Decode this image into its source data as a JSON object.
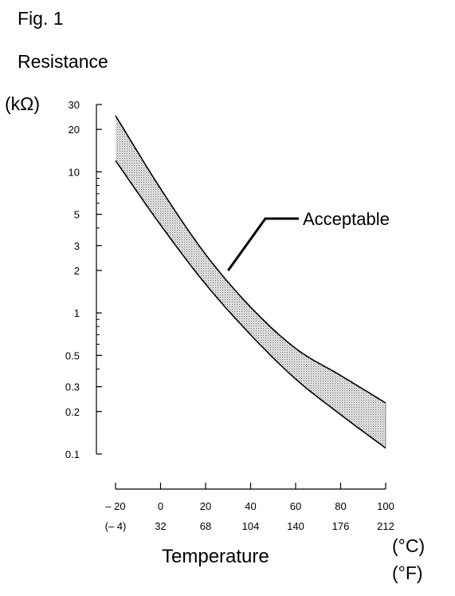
{
  "figure_label": "Fig. 1",
  "chart_data": {
    "type": "area",
    "title": "",
    "ylabel": "Resistance",
    "ylabel_unit": "(kΩ)",
    "xlabel": "Temperature",
    "x_unit_primary": "(°C)",
    "x_unit_secondary": "(°F)",
    "y_scale": "log",
    "ylim": [
      0.1,
      30
    ],
    "xlim": [
      -20,
      100
    ],
    "y_ticks": [
      {
        "value": 30,
        "label": "30"
      },
      {
        "value": 20,
        "label": "20"
      },
      {
        "value": 10,
        "label": "10"
      },
      {
        "value": 5,
        "label": "5"
      },
      {
        "value": 3,
        "label": "3"
      },
      {
        "value": 2,
        "label": "2"
      },
      {
        "value": 1,
        "label": "1"
      },
      {
        "value": 0.5,
        "label": "0.5"
      },
      {
        "value": 0.3,
        "label": "0.3"
      },
      {
        "value": 0.2,
        "label": "0.2"
      },
      {
        "value": 0.1,
        "label": "0.1"
      }
    ],
    "x_ticks": [
      {
        "value": -20,
        "label_c": "– 20",
        "label_f": "(– 4)"
      },
      {
        "value": 0,
        "label_c": "0",
        "label_f": "32"
      },
      {
        "value": 20,
        "label_c": "20",
        "label_f": "68"
      },
      {
        "value": 40,
        "label_c": "40",
        "label_f": "104"
      },
      {
        "value": 60,
        "label_c": "60",
        "label_f": "140"
      },
      {
        "value": 80,
        "label_c": "80",
        "label_f": "176"
      },
      {
        "value": 100,
        "label_c": "100",
        "label_f": "212"
      }
    ],
    "series": [
      {
        "x": [
          -20,
          0,
          20,
          40,
          60,
          80,
          100
        ],
        "values": [
          25,
          7.6,
          2.6,
          1.1,
          0.56,
          0.36,
          0.23
        ]
      },
      {
        "x": [
          -20,
          0,
          20,
          40,
          60,
          80,
          100
        ],
        "values": [
          12,
          4.2,
          1.6,
          0.7,
          0.34,
          0.19,
          0.11
        ]
      }
    ],
    "band_annotation": {
      "label": "Acceptable",
      "x": 30,
      "y": 2.0
    },
    "grid": false,
    "legend": "none"
  }
}
